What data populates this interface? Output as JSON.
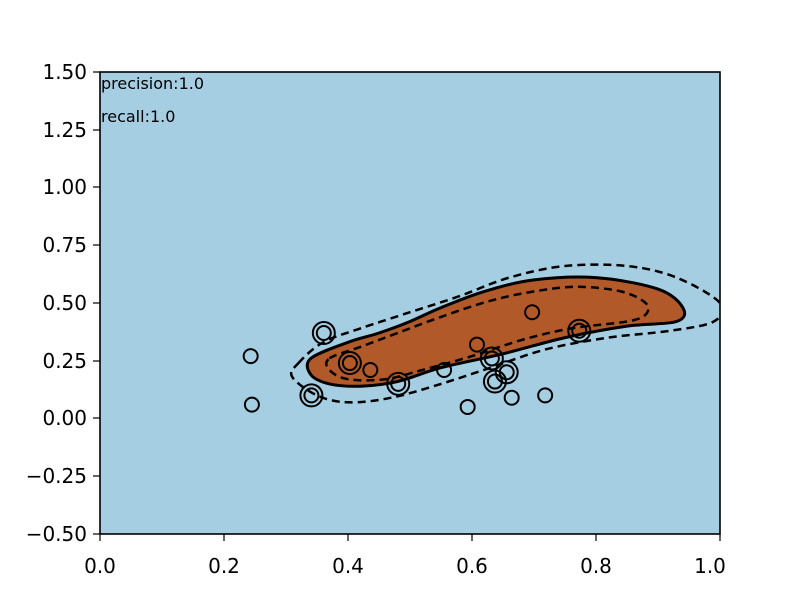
{
  "chart_data": {
    "type": "scatter",
    "title": "",
    "xlabel": "",
    "ylabel": "",
    "xlim": [
      0.0,
      1.0
    ],
    "ylim": [
      -0.5,
      1.5
    ],
    "grid": false,
    "x_ticks": [
      "0.0",
      "0.2",
      "0.4",
      "0.6",
      "0.8",
      "1.0"
    ],
    "y_ticks": [
      "1.50",
      "1.25",
      "1.00",
      "0.75",
      "0.50",
      "0.25",
      "0.00",
      "−0.25",
      "−0.50"
    ],
    "annotations": [
      "precision:1.0",
      "recall:1.0"
    ],
    "colors": {
      "background": "#a6cee3",
      "region": "#b15928",
      "marker_edge": "#000000",
      "support_ring": "#000000"
    },
    "points": [
      {
        "x": 0.243,
        "y": 0.27
      },
      {
        "x": 0.245,
        "y": 0.06
      },
      {
        "x": 0.341,
        "y": 0.1
      },
      {
        "x": 0.361,
        "y": 0.37
      },
      {
        "x": 0.403,
        "y": 0.24
      },
      {
        "x": 0.436,
        "y": 0.21
      },
      {
        "x": 0.481,
        "y": 0.15
      },
      {
        "x": 0.555,
        "y": 0.21
      },
      {
        "x": 0.593,
        "y": 0.05
      },
      {
        "x": 0.608,
        "y": 0.32
      },
      {
        "x": 0.632,
        "y": 0.26
      },
      {
        "x": 0.637,
        "y": 0.16
      },
      {
        "x": 0.656,
        "y": 0.2
      },
      {
        "x": 0.664,
        "y": 0.09
      },
      {
        "x": 0.697,
        "y": 0.46
      },
      {
        "x": 0.718,
        "y": 0.1
      },
      {
        "x": 0.773,
        "y": 0.38
      }
    ],
    "support_vectors": [
      {
        "x": 0.341,
        "y": 0.1
      },
      {
        "x": 0.361,
        "y": 0.37
      },
      {
        "x": 0.403,
        "y": 0.24
      },
      {
        "x": 0.481,
        "y": 0.15
      },
      {
        "x": 0.632,
        "y": 0.26
      },
      {
        "x": 0.637,
        "y": 0.16
      },
      {
        "x": 0.656,
        "y": 0.2
      },
      {
        "x": 0.773,
        "y": 0.38
      }
    ],
    "decision_boundary": [
      [
        0.34,
        0.26
      ],
      [
        0.4,
        0.33
      ],
      [
        0.45,
        0.37
      ],
      [
        0.5,
        0.42
      ],
      [
        0.55,
        0.48
      ],
      [
        0.62,
        0.55
      ],
      [
        0.7,
        0.6
      ],
      [
        0.8,
        0.61
      ],
      [
        0.9,
        0.56
      ],
      [
        0.94,
        0.48
      ],
      [
        0.93,
        0.42
      ],
      [
        0.85,
        0.4
      ],
      [
        0.75,
        0.35
      ],
      [
        0.65,
        0.28
      ],
      [
        0.55,
        0.22
      ],
      [
        0.48,
        0.16
      ],
      [
        0.42,
        0.14
      ],
      [
        0.37,
        0.15
      ],
      [
        0.34,
        0.19
      ]
    ],
    "margin_outer": [
      [
        0.32,
        0.24
      ],
      [
        0.36,
        0.33
      ],
      [
        0.42,
        0.39
      ],
      [
        0.5,
        0.46
      ],
      [
        0.58,
        0.53
      ],
      [
        0.66,
        0.61
      ],
      [
        0.75,
        0.66
      ],
      [
        0.85,
        0.66
      ],
      [
        0.93,
        0.61
      ],
      [
        1.0,
        0.5
      ],
      [
        0.99,
        0.42
      ],
      [
        0.92,
        0.38
      ],
      [
        0.82,
        0.35
      ],
      [
        0.72,
        0.3
      ],
      [
        0.63,
        0.22
      ],
      [
        0.55,
        0.15
      ],
      [
        0.47,
        0.09
      ],
      [
        0.4,
        0.07
      ],
      [
        0.35,
        0.1
      ],
      [
        0.31,
        0.18
      ]
    ],
    "margin_inner": [
      [
        0.37,
        0.26
      ],
      [
        0.42,
        0.31
      ],
      [
        0.48,
        0.37
      ],
      [
        0.55,
        0.44
      ],
      [
        0.63,
        0.51
      ],
      [
        0.7,
        0.55
      ],
      [
        0.77,
        0.57
      ],
      [
        0.84,
        0.55
      ],
      [
        0.88,
        0.5
      ],
      [
        0.88,
        0.45
      ],
      [
        0.85,
        0.42
      ],
      [
        0.76,
        0.39
      ],
      [
        0.68,
        0.34
      ],
      [
        0.6,
        0.27
      ],
      [
        0.52,
        0.21
      ],
      [
        0.46,
        0.17
      ],
      [
        0.4,
        0.17
      ],
      [
        0.37,
        0.21
      ]
    ]
  }
}
